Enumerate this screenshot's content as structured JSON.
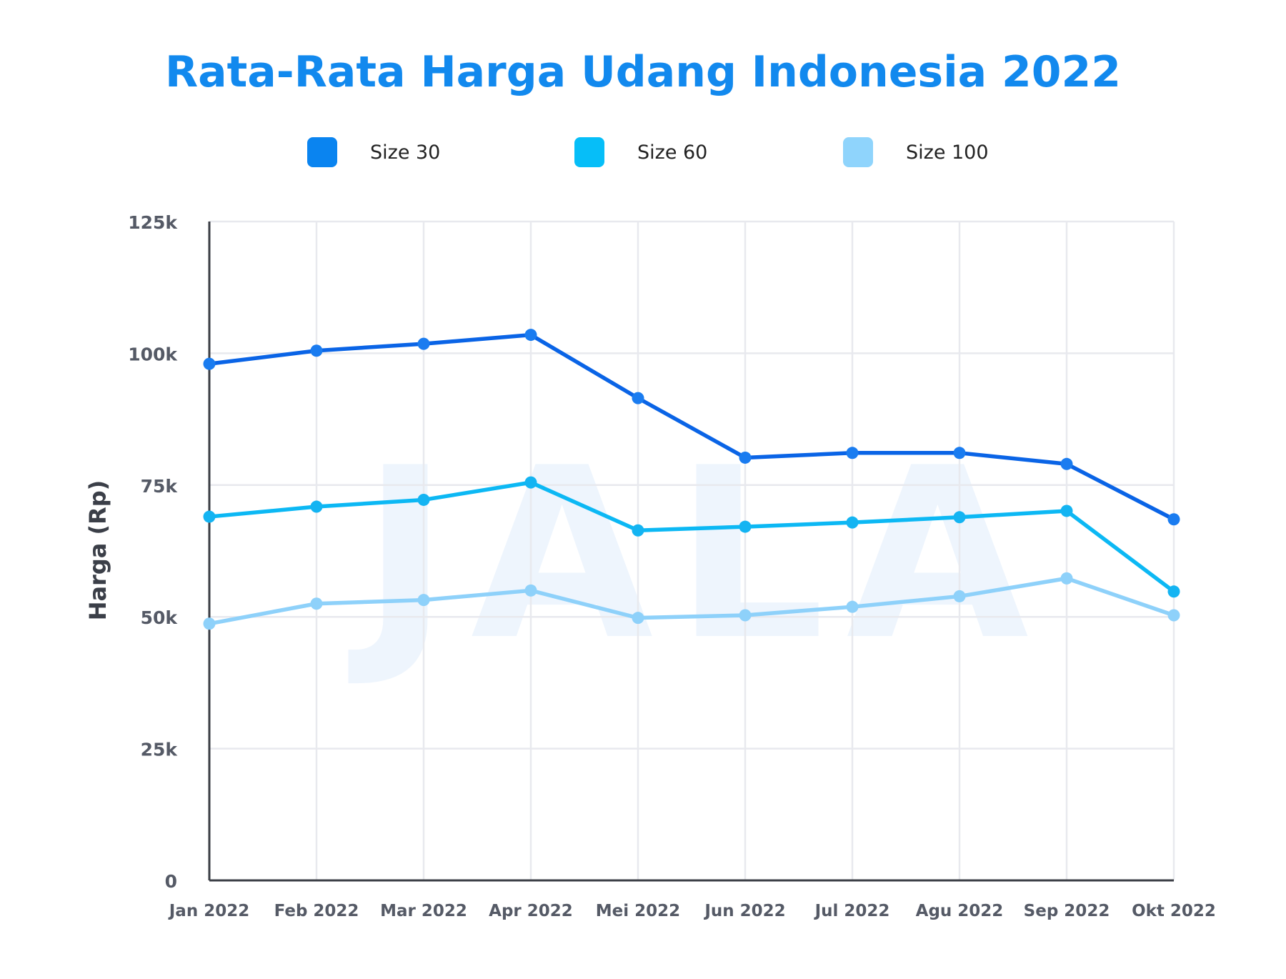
{
  "chart_data": {
    "type": "line",
    "title": "Rata-Rata Harga Udang Indonesia 2022",
    "ylabel": "Harga (Rp)",
    "xlabel": "",
    "watermark": "JALA",
    "categories": [
      "Jan 2022",
      "Feb 2022",
      "Mar 2022",
      "Apr 2022",
      "Mei 2022",
      "Jun 2022",
      "Jul 2022",
      "Agu 2022",
      "Sep 2022",
      "Okt 2022"
    ],
    "ylim": [
      0,
      125000
    ],
    "yticks": [
      0,
      25000,
      50000,
      75000,
      100000,
      125000
    ],
    "ytick_labels": [
      "0",
      "25k",
      "50k",
      "75k",
      "100k",
      "125k"
    ],
    "grid": true,
    "legend_position": "top",
    "series": [
      {
        "name": "Size 30",
        "color": "#0A64E6",
        "marker_color": "#1A7CF0",
        "swatch_color": "#0A84F0",
        "values": [
          98000,
          100500,
          101800,
          103500,
          91500,
          80200,
          81100,
          81100,
          79000,
          68500
        ]
      },
      {
        "name": "Size 60",
        "color": "#0CB8F4",
        "marker_color": "#14B4F2",
        "swatch_color": "#06BEF8",
        "values": [
          69000,
          70900,
          72200,
          75500,
          66400,
          67100,
          67900,
          68900,
          70100,
          54800
        ]
      },
      {
        "name": "Size 100",
        "color": "#8ED1FA",
        "marker_color": "#8ED1FA",
        "swatch_color": "#8FD4FC",
        "values": [
          48700,
          52500,
          53200,
          55000,
          49800,
          50300,
          51900,
          53900,
          57300,
          50300
        ]
      }
    ]
  }
}
